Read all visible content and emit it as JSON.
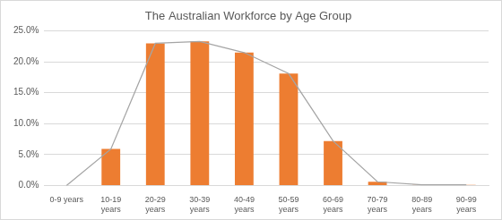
{
  "chart_data": {
    "type": "bar",
    "title": "The Australian Workforce by Age Group",
    "categories": [
      "0-9 years",
      "10-19 years",
      "20-29 years",
      "30-39 years",
      "40-49 years",
      "50-59 years",
      "60-69 years",
      "70-79 years",
      "80-89 years",
      "90-99 years"
    ],
    "series": [
      {
        "type": "bar",
        "color": "#ed7d31",
        "values": [
          0,
          5.9,
          23.0,
          23.3,
          21.5,
          18.1,
          7.2,
          0.6,
          0.1,
          0.1
        ]
      },
      {
        "type": "line",
        "color": "#a5a5a5",
        "marker": "none",
        "line_style": "solid",
        "values": [
          0,
          5.9,
          23.0,
          23.3,
          21.5,
          18.1,
          7.2,
          0.6,
          0.1,
          0.1
        ]
      }
    ],
    "ylim": [
      0,
      25
    ],
    "yticks": [
      {
        "value": 0,
        "label": "0.0%"
      },
      {
        "value": 5,
        "label": "5.0%"
      },
      {
        "value": 10,
        "label": "10.0%"
      },
      {
        "value": 15,
        "label": "15.0%"
      },
      {
        "value": 20,
        "label": "20.0%"
      },
      {
        "value": 25,
        "label": "25.0%"
      }
    ],
    "grid": true
  }
}
